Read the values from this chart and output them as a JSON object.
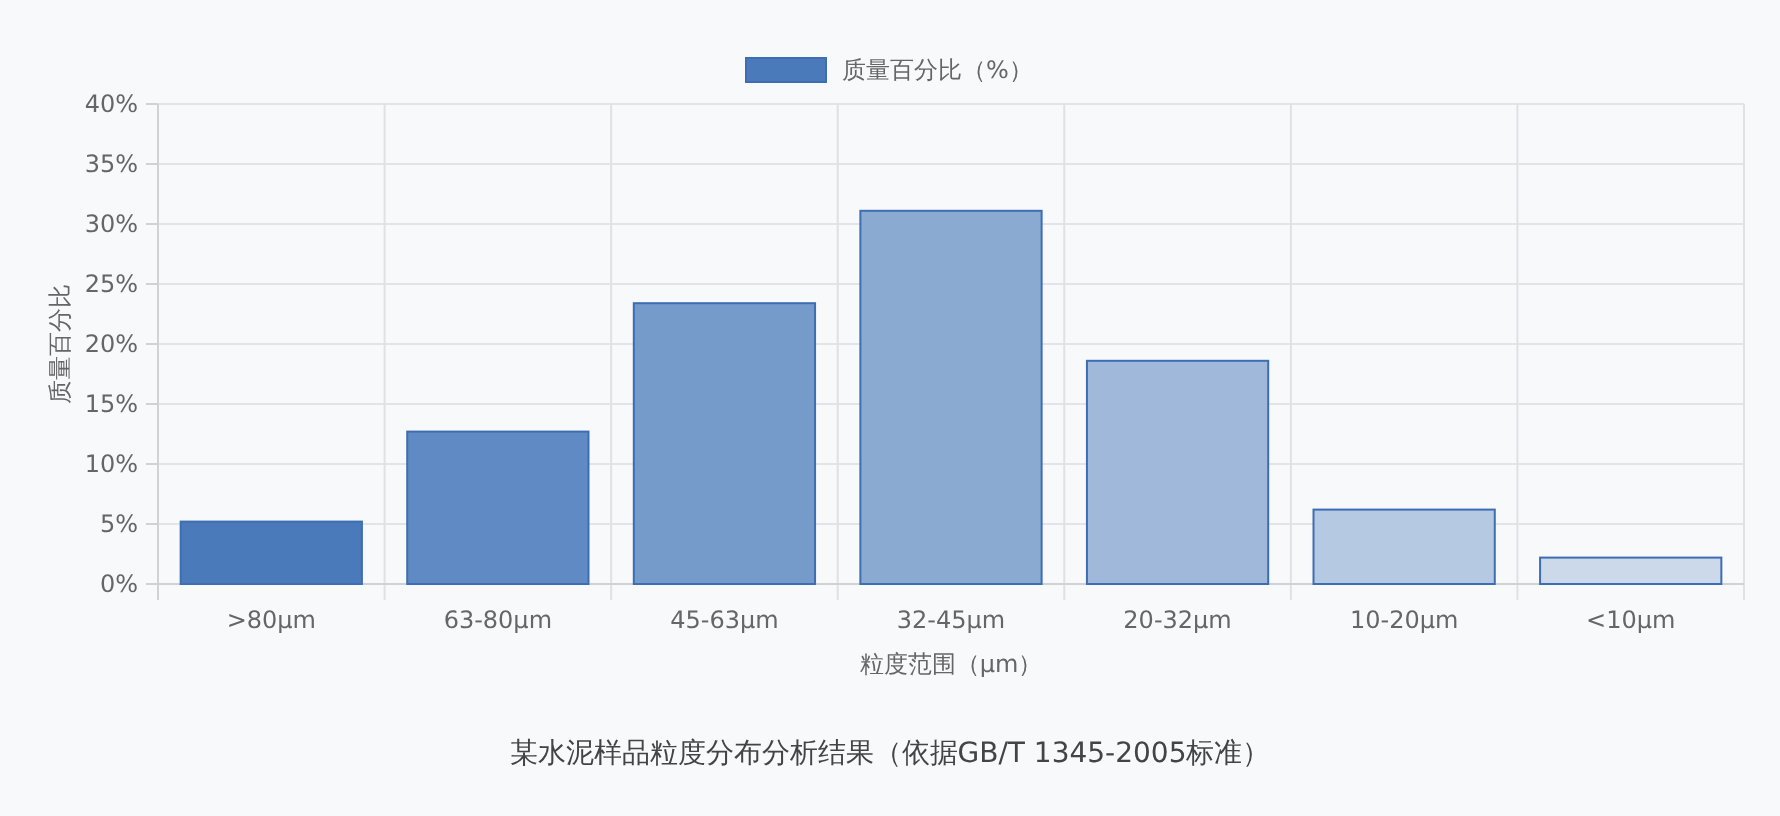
{
  "chart_data": {
    "type": "bar",
    "title": "某水泥样品粒度分布分析结果（依据GB/T 1345-2005标准）",
    "xlabel": "粒度范围（μm）",
    "ylabel": "质量百分比",
    "categories": [
      ">80μm",
      "63-80μm",
      "45-63μm",
      "32-45μm",
      "20-32μm",
      "10-20μm",
      "<10μm"
    ],
    "series": [
      {
        "name": "质量百分比（%）",
        "color": "#4a7aba",
        "colors": [
          "#4a7aba",
          "#5f8ac3",
          "#759bcb",
          "#8aaad2",
          "#a0b8d9",
          "#b6c9e3",
          "#ccd9ea"
        ],
        "values": [
          5.2,
          12.7,
          23.4,
          31.1,
          18.6,
          6.2,
          2.2
        ]
      }
    ],
    "ylim": [
      0,
      40
    ],
    "yticks": [
      {
        "value": 0,
        "label": "0%"
      },
      {
        "value": 5,
        "label": "5%"
      },
      {
        "value": 10,
        "label": "10%"
      },
      {
        "value": 15,
        "label": "15%"
      },
      {
        "value": 20,
        "label": "20%"
      },
      {
        "value": 25,
        "label": "25%"
      },
      {
        "value": 30,
        "label": "30%"
      },
      {
        "value": 35,
        "label": "35%"
      },
      {
        "value": 40,
        "label": "40%"
      }
    ],
    "grid": true,
    "legend": "top"
  }
}
